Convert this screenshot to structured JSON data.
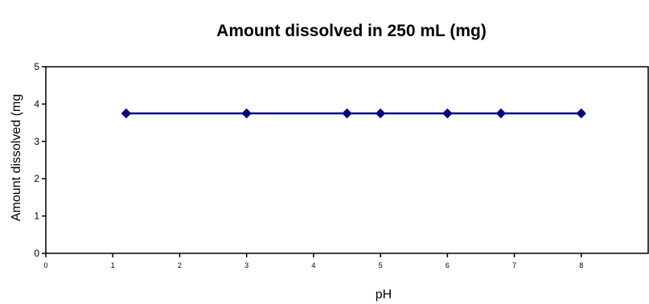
{
  "chart_data": {
    "type": "line",
    "title": "Amount dissolved in 250 mL (mg)",
    "xlabel": "pH",
    "ylabel": "Amount dissolved (mg",
    "xlim": [
      0,
      9
    ],
    "ylim": [
      0,
      5
    ],
    "xticks": [
      0,
      1,
      2,
      3,
      4,
      5,
      6,
      7,
      8
    ],
    "yticks": [
      0,
      1,
      2,
      3,
      4,
      5
    ],
    "grid": false,
    "legend": "none",
    "series": [
      {
        "color": "#00007F",
        "marker": "diamond",
        "x": [
          1.2,
          3.0,
          4.5,
          5.0,
          6.0,
          6.8,
          8.0
        ],
        "y": [
          3.75,
          3.75,
          3.75,
          3.75,
          3.75,
          3.75,
          3.75
        ]
      }
    ]
  }
}
